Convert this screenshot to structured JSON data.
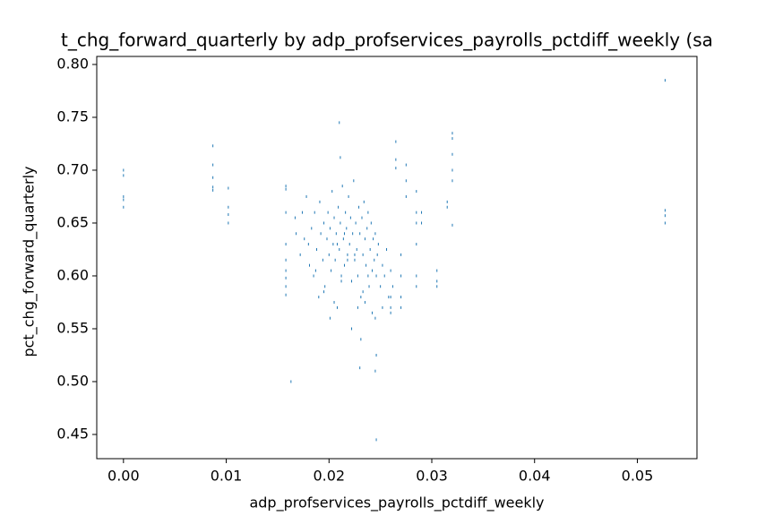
{
  "chart_data": {
    "type": "scatter",
    "title": "t_chg_forward_quarterly by adp_profservices_payrolls_pctdiff_weekly (sa",
    "x_label": "adp_profservices_payrolls_pctdiff_weekly",
    "y_label": "pct_chg_forward_quarterly",
    "color": "#1f77b4",
    "xlim": [
      -0.0026,
      0.0558
    ],
    "ylim": [
      0.4271,
      0.8076
    ],
    "xticks": [
      {
        "value": 0,
        "label": "0.00"
      },
      {
        "value": 0.01,
        "label": "0.01"
      },
      {
        "value": 0.02,
        "label": "0.02"
      },
      {
        "value": 0.03,
        "label": "0.03"
      },
      {
        "value": 0.04,
        "label": "0.04"
      },
      {
        "value": 0.05,
        "label": "0.05"
      }
    ],
    "yticks": [
      {
        "value": 0.45,
        "label": "0.45"
      },
      {
        "value": 0.5,
        "label": "0.50"
      },
      {
        "value": 0.55,
        "label": "0.55"
      },
      {
        "value": 0.6,
        "label": "0.60"
      },
      {
        "value": 0.65,
        "label": "0.65"
      },
      {
        "value": 0.7,
        "label": "0.70"
      },
      {
        "value": 0.75,
        "label": "0.75"
      },
      {
        "value": 0.8,
        "label": "0.80"
      }
    ],
    "x": [
      0,
      0,
      0,
      0,
      0,
      0.0087,
      0.0087,
      0.0087,
      0.0087,
      0.0087,
      0.0102,
      0.0102,
      0.0102,
      0.0102,
      0.0158,
      0.0158,
      0.0158,
      0.0158,
      0.0158,
      0.0158,
      0.0158,
      0.0158,
      0.0158,
      0.0163,
      0.0167,
      0.0168,
      0.0172,
      0.0174,
      0.0176,
      0.0178,
      0.018,
      0.0181,
      0.0183,
      0.0185,
      0.0186,
      0.0188,
      0.019,
      0.0191,
      0.0192,
      0.0194,
      0.0195,
      0.0196,
      0.0198,
      0.0199,
      0.02,
      0.0201,
      0.0202,
      0.0203,
      0.0204,
      0.0205,
      0.0206,
      0.0207,
      0.0208,
      0.0209,
      0.021,
      0.0211,
      0.0212,
      0.0213,
      0.0214,
      0.0215,
      0.0216,
      0.0217,
      0.0218,
      0.0219,
      0.022,
      0.0221,
      0.0222,
      0.0223,
      0.0224,
      0.0225,
      0.0226,
      0.0227,
      0.0228,
      0.0229,
      0.023,
      0.0231,
      0.0232,
      0.0233,
      0.0234,
      0.0235,
      0.0236,
      0.0237,
      0.0238,
      0.0239,
      0.024,
      0.0241,
      0.0242,
      0.0243,
      0.0244,
      0.0245,
      0.0246,
      0.0247,
      0.0248,
      0.025,
      0.0252,
      0.0254,
      0.0256,
      0.0258,
      0.026,
      0.0262,
      0.0201,
      0.0205,
      0.0212,
      0.0218,
      0.0222,
      0.0228,
      0.0233,
      0.0238,
      0.0242,
      0.0195,
      0.0187,
      0.0208,
      0.0215,
      0.0225,
      0.0235,
      0.0245,
      0.0252,
      0.0245,
      0.0246,
      0.0246,
      0.023,
      0.0231,
      0.021,
      0.0211,
      0.0265,
      0.0265,
      0.0265,
      0.0275,
      0.0275,
      0.0275,
      0.0285,
      0.0285,
      0.0285,
      0.0285,
      0.0285,
      0.0285,
      0.029,
      0.029,
      0.0305,
      0.0305,
      0.0305,
      0.0315,
      0.0315,
      0.032,
      0.032,
      0.032,
      0.032,
      0.032,
      0.032,
      0.0527,
      0.0527,
      0.0527,
      0.0527,
      0.027,
      0.027,
      0.027,
      0.027,
      0.026,
      0.026,
      0.026
    ],
    "values": [
      0.7,
      0.695,
      0.675,
      0.672,
      0.665,
      0.723,
      0.705,
      0.693,
      0.684,
      0.681,
      0.683,
      0.665,
      0.658,
      0.65,
      0.685,
      0.682,
      0.66,
      0.63,
      0.615,
      0.605,
      0.598,
      0.59,
      0.582,
      0.5,
      0.655,
      0.64,
      0.62,
      0.66,
      0.635,
      0.675,
      0.63,
      0.61,
      0.645,
      0.6,
      0.66,
      0.625,
      0.58,
      0.67,
      0.64,
      0.615,
      0.65,
      0.59,
      0.635,
      0.66,
      0.62,
      0.645,
      0.605,
      0.68,
      0.63,
      0.655,
      0.615,
      0.64,
      0.57,
      0.665,
      0.625,
      0.65,
      0.6,
      0.685,
      0.635,
      0.61,
      0.66,
      0.645,
      0.62,
      0.675,
      0.63,
      0.655,
      0.595,
      0.64,
      0.69,
      0.615,
      0.65,
      0.625,
      0.6,
      0.665,
      0.64,
      0.58,
      0.655,
      0.62,
      0.67,
      0.635,
      0.61,
      0.645,
      0.66,
      0.59,
      0.625,
      0.65,
      0.605,
      0.635,
      0.615,
      0.64,
      0.6,
      0.62,
      0.63,
      0.59,
      0.61,
      0.6,
      0.625,
      0.58,
      0.605,
      0.59,
      0.56,
      0.575,
      0.595,
      0.615,
      0.55,
      0.57,
      0.585,
      0.6,
      0.565,
      0.585,
      0.605,
      0.63,
      0.64,
      0.62,
      0.575,
      0.56,
      0.57,
      0.51,
      0.525,
      0.445,
      0.513,
      0.54,
      0.745,
      0.712,
      0.727,
      0.71,
      0.702,
      0.705,
      0.69,
      0.675,
      0.68,
      0.66,
      0.65,
      0.63,
      0.6,
      0.59,
      0.66,
      0.65,
      0.605,
      0.595,
      0.59,
      0.67,
      0.665,
      0.735,
      0.73,
      0.715,
      0.7,
      0.69,
      0.648,
      0.785,
      0.662,
      0.657,
      0.65,
      0.62,
      0.6,
      0.58,
      0.57,
      0.57,
      0.565,
      0.58
    ]
  }
}
